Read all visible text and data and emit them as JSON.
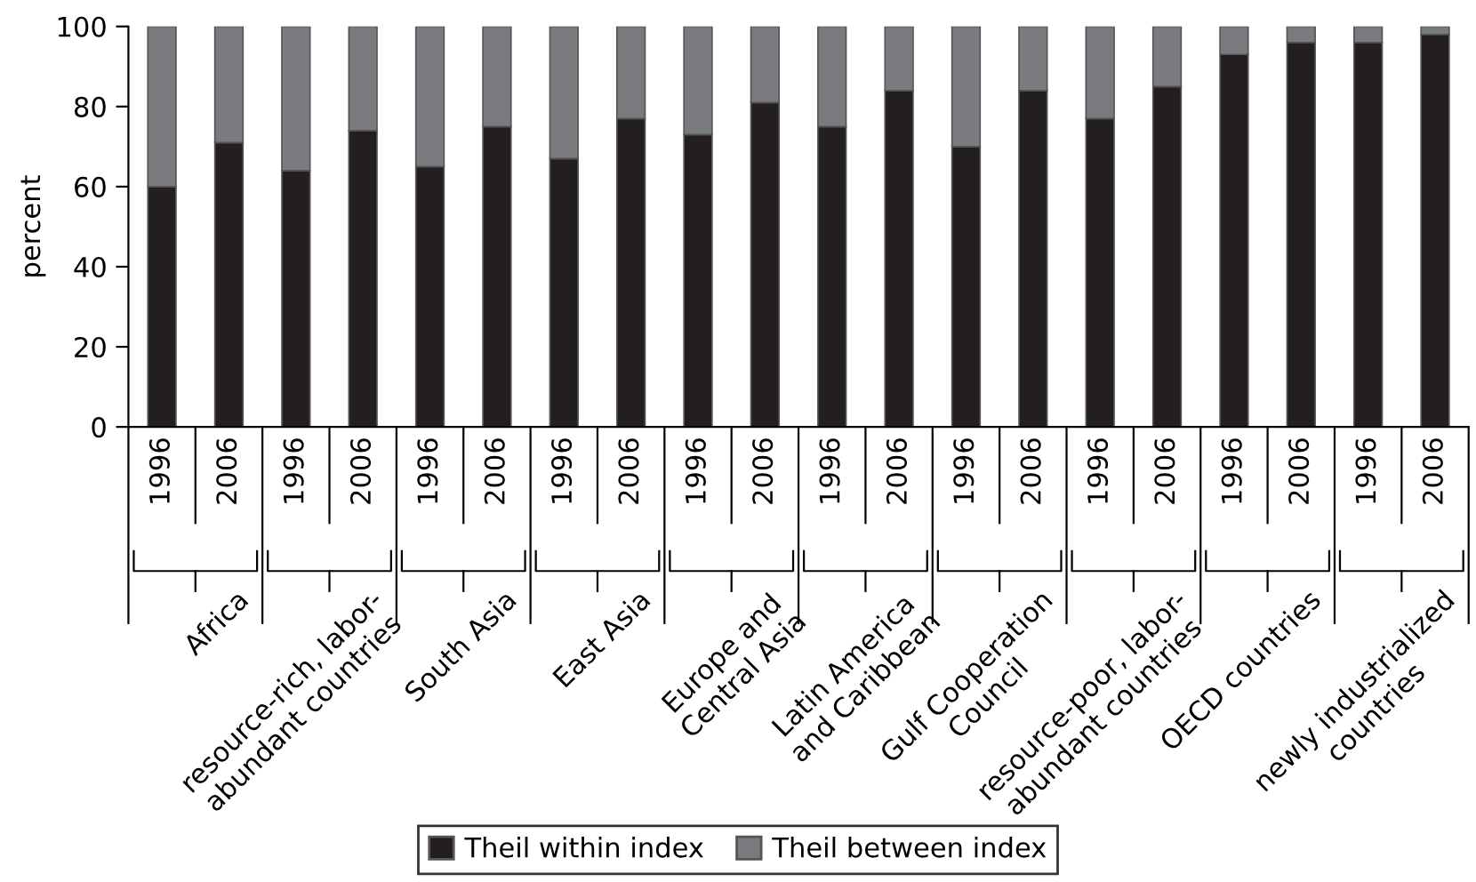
{
  "chart_data": {
    "type": "bar",
    "stacked": true,
    "ylabel": "percent",
    "categories": [
      "1996",
      "2006",
      "1996",
      "2006",
      "1996",
      "2006",
      "1996",
      "2006",
      "1996",
      "2006",
      "1996",
      "2006",
      "1996",
      "2006",
      "1996",
      "2006",
      "1996",
      "2006",
      "1996",
      "2006"
    ],
    "series": [
      {
        "name": "Theil within index",
        "color": "#231f20",
        "values": [
          60,
          71,
          64,
          74,
          65,
          75,
          67,
          77,
          73,
          81,
          75,
          84,
          70,
          84,
          77,
          85,
          93,
          96,
          96,
          98
        ]
      },
      {
        "name": "Theil between index",
        "color": "#7a7b7e",
        "values": [
          40,
          29,
          36,
          26,
          35,
          25,
          33,
          23,
          27,
          19,
          25,
          16,
          30,
          16,
          23,
          15,
          7,
          4,
          4,
          2
        ]
      }
    ],
    "annotations": [
      "Africa",
      "resource-rich, labor-\nabundant countries",
      "South Asia",
      "East Asia",
      "Europe and\nCentral Asia",
      "Latin America\nand Caribbean",
      "Gulf Cooperation\nCouncil",
      "resource-poor, labor-\nabundant countries",
      "OECD countries",
      "newly industrialized\ncountries"
    ],
    "ylim": [
      0,
      100
    ],
    "yticks": [
      0,
      20,
      40,
      60,
      80,
      100
    ],
    "grid": false,
    "legend": "bottom"
  }
}
